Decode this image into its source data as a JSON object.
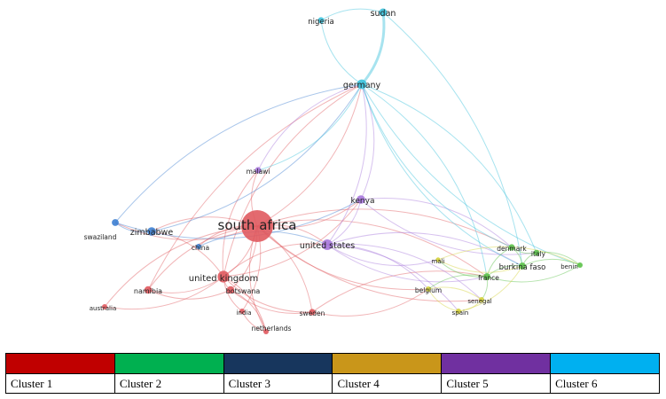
{
  "nodes": [
    {
      "id": "south africa",
      "label": "south africa",
      "cluster": 1,
      "weight": 6
    },
    {
      "id": "united kingdom",
      "label": "united kingdom",
      "cluster": 1,
      "weight": 2.2
    },
    {
      "id": "namibia",
      "label": "namibia",
      "cluster": 1,
      "weight": 1.4
    },
    {
      "id": "botswana",
      "label": "botswana",
      "cluster": 1,
      "weight": 1.4
    },
    {
      "id": "australia",
      "label": "australia",
      "cluster": 1,
      "weight": 1
    },
    {
      "id": "india",
      "label": "india",
      "cluster": 1,
      "weight": 1
    },
    {
      "id": "netherlands",
      "label": "netherlands",
      "cluster": 1,
      "weight": 1
    },
    {
      "id": "sweden",
      "label": "sweden",
      "cluster": 1,
      "weight": 1.2
    },
    {
      "id": "zimbabwe",
      "label": "zimbabwe",
      "cluster": 3,
      "weight": 1.6
    },
    {
      "id": "swaziland",
      "label": "swaziland",
      "cluster": 3,
      "weight": 1.3
    },
    {
      "id": "china",
      "label": "china",
      "cluster": 3,
      "weight": 1
    },
    {
      "id": "united states",
      "label": "united states",
      "cluster": 5,
      "weight": 2
    },
    {
      "id": "kenya",
      "label": "kenya",
      "cluster": 5,
      "weight": 1.6
    },
    {
      "id": "malawi",
      "label": "malawi",
      "cluster": 5,
      "weight": 1.2
    },
    {
      "id": "germany",
      "label": "germany",
      "cluster": 6,
      "weight": 1.8
    },
    {
      "id": "sudan",
      "label": "sudan",
      "cluster": 6,
      "weight": 1.5
    },
    {
      "id": "nigeria",
      "label": "nigeria",
      "cluster": 6,
      "weight": 1.2
    },
    {
      "id": "denmark",
      "label": "denmark",
      "cluster": 2,
      "weight": 1.2
    },
    {
      "id": "italy",
      "label": "italy",
      "cluster": 2,
      "weight": 1.1
    },
    {
      "id": "burkina faso",
      "label": "burkina faso",
      "cluster": 2,
      "weight": 1.3
    },
    {
      "id": "benin",
      "label": "benin",
      "cluster": 2,
      "weight": 1
    },
    {
      "id": "france",
      "label": "france",
      "cluster": 2,
      "weight": 1.3
    },
    {
      "id": "mali",
      "label": "mali",
      "cluster": 4,
      "weight": 0.9
    },
    {
      "id": "belgium",
      "label": "belgium",
      "cluster": 4,
      "weight": 1
    },
    {
      "id": "senegal",
      "label": "senegal",
      "cluster": 4,
      "weight": 1
    },
    {
      "id": "spain",
      "label": "spain",
      "cluster": 4,
      "weight": 1
    }
  ],
  "links": [
    [
      "south africa",
      "united kingdom"
    ],
    [
      "south africa",
      "namibia"
    ],
    [
      "south africa",
      "botswana"
    ],
    [
      "south africa",
      "australia"
    ],
    [
      "south africa",
      "india"
    ],
    [
      "south africa",
      "netherlands"
    ],
    [
      "south africa",
      "sweden"
    ],
    [
      "south africa",
      "zimbabwe"
    ],
    [
      "south africa",
      "swaziland"
    ],
    [
      "south africa",
      "china"
    ],
    [
      "south africa",
      "united states"
    ],
    [
      "south africa",
      "kenya"
    ],
    [
      "south africa",
      "malawi"
    ],
    [
      "south africa",
      "germany"
    ],
    [
      "south africa",
      "france"
    ],
    [
      "south africa",
      "belgium"
    ],
    [
      "south africa",
      "denmark"
    ],
    [
      "south africa",
      "senegal"
    ],
    [
      "united kingdom",
      "namibia"
    ],
    [
      "united kingdom",
      "botswana"
    ],
    [
      "united kingdom",
      "australia"
    ],
    [
      "united kingdom",
      "india"
    ],
    [
      "united kingdom",
      "netherlands"
    ],
    [
      "united kingdom",
      "sweden"
    ],
    [
      "united kingdom",
      "united states"
    ],
    [
      "united kingdom",
      "zimbabwe"
    ],
    [
      "united kingdom",
      "germany"
    ],
    [
      "united kingdom",
      "kenya"
    ],
    [
      "united kingdom",
      "malawi"
    ],
    [
      "namibia",
      "botswana"
    ],
    [
      "namibia",
      "germany"
    ],
    [
      "botswana",
      "sweden"
    ],
    [
      "botswana",
      "netherlands"
    ],
    [
      "india",
      "netherlands"
    ],
    [
      "sweden",
      "france"
    ],
    [
      "sweden",
      "belgium"
    ],
    [
      "zimbabwe",
      "swaziland"
    ],
    [
      "zimbabwe",
      "germany"
    ],
    [
      "swaziland",
      "germany"
    ],
    [
      "swaziland",
      "kenya"
    ],
    [
      "china",
      "united states"
    ],
    [
      "united states",
      "kenya"
    ],
    [
      "united states",
      "belgium"
    ],
    [
      "united states",
      "france"
    ],
    [
      "united states",
      "burkina faso"
    ],
    [
      "united states",
      "mali"
    ],
    [
      "united states",
      "spain"
    ],
    [
      "united states",
      "germany"
    ],
    [
      "united states",
      "senegal"
    ],
    [
      "kenya",
      "germany"
    ],
    [
      "kenya",
      "denmark"
    ],
    [
      "kenya",
      "italy"
    ],
    [
      "malawi",
      "germany"
    ],
    [
      "germany",
      "sudan"
    ],
    [
      "germany",
      "nigeria"
    ],
    [
      "germany",
      "denmark"
    ],
    [
      "germany",
      "france"
    ],
    [
      "germany",
      "burkina faso"
    ],
    [
      "germany",
      "italy"
    ],
    [
      "germany",
      "benin"
    ],
    [
      "germany",
      "malawi"
    ],
    [
      "sudan",
      "nigeria"
    ],
    [
      "sudan",
      "burkina faso"
    ],
    [
      "denmark",
      "italy"
    ],
    [
      "denmark",
      "burkina faso"
    ],
    [
      "denmark",
      "france"
    ],
    [
      "italy",
      "benin"
    ],
    [
      "italy",
      "burkina faso"
    ],
    [
      "burkina faso",
      "benin"
    ],
    [
      "burkina faso",
      "france"
    ],
    [
      "france",
      "senegal"
    ],
    [
      "france",
      "belgium"
    ],
    [
      "france",
      "mali"
    ],
    [
      "france",
      "benin"
    ],
    [
      "belgium",
      "senegal"
    ],
    [
      "belgium",
      "spain"
    ],
    [
      "senegal",
      "spain"
    ],
    [
      "mali",
      "burkina faso"
    ],
    [
      "mali",
      "benin"
    ],
    [
      "spain",
      "burkina faso"
    ]
  ],
  "clusters": [
    {
      "id": 1,
      "label": "Cluster 1",
      "color": "#c00000"
    },
    {
      "id": 2,
      "label": "Cluster 2",
      "color": "#00b050"
    },
    {
      "id": 3,
      "label": "Cluster 3",
      "color": "#17365d"
    },
    {
      "id": 4,
      "label": "Cluster 4",
      "color": "#c9961a"
    },
    {
      "id": 5,
      "label": "Cluster 5",
      "color": "#7030a0"
    },
    {
      "id": 6,
      "label": "Cluster 6",
      "color": "#00b0f0"
    }
  ],
  "node_colors": {
    "1": "#e05a5f",
    "2": "#5cc24a",
    "3": "#3d7fd1",
    "4": "#d4d23b",
    "5": "#a777dc",
    "6": "#3cc2dc"
  }
}
